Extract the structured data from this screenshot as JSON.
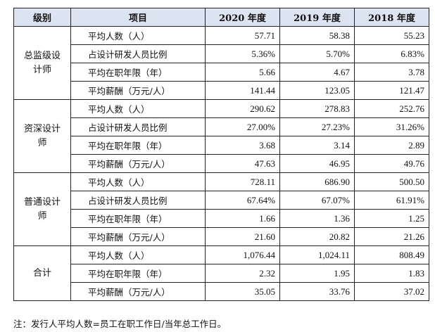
{
  "table": {
    "headers": [
      "级别",
      "项目",
      "2020 年度",
      "2019 年度",
      "2018 年度"
    ],
    "groups": [
      {
        "name": "总监级设计师",
        "rows": [
          {
            "item": "平均人数（人）",
            "v2020": "57.71",
            "v2019": "58.38",
            "v2018": "55.23"
          },
          {
            "item": "占设计研发人员比例",
            "v2020": "5.36%",
            "v2019": "5.70%",
            "v2018": "6.83%"
          },
          {
            "item": "平均在职年限（年）",
            "v2020": "5.66",
            "v2019": "4.67",
            "v2018": "3.78"
          },
          {
            "item": "平均薪酬（万元/人）",
            "v2020": "141.44",
            "v2019": "123.05",
            "v2018": "121.47"
          }
        ]
      },
      {
        "name": "资深设计师",
        "rows": [
          {
            "item": "平均人数（人）",
            "v2020": "290.62",
            "v2019": "278.83",
            "v2018": "252.76"
          },
          {
            "item": "占设计研发人员比例",
            "v2020": "27.00%",
            "v2019": "27.23%",
            "v2018": "31.26%"
          },
          {
            "item": "平均在职年限（年）",
            "v2020": "3.68",
            "v2019": "3.14",
            "v2018": "2.89"
          },
          {
            "item": "平均薪酬（万元/人）",
            "v2020": "47.63",
            "v2019": "46.95",
            "v2018": "49.76"
          }
        ]
      },
      {
        "name": "普通设计师",
        "rows": [
          {
            "item": "平均人数（人）",
            "v2020": "728.11",
            "v2019": "686.90",
            "v2018": "500.50"
          },
          {
            "item": "占设计研发人员比例",
            "v2020": "67.64%",
            "v2019": "67.07%",
            "v2018": "61.91%"
          },
          {
            "item": "平均在职年限（年）",
            "v2020": "1.66",
            "v2019": "1.36",
            "v2018": "1.25"
          },
          {
            "item": "平均薪酬（万元/人）",
            "v2020": "21.60",
            "v2019": "20.82",
            "v2018": "21.26"
          }
        ]
      },
      {
        "name": "合计",
        "rows": [
          {
            "item": "平均人数（人）",
            "v2020": "1,076.44",
            "v2019": "1,024.11",
            "v2018": "808.49"
          },
          {
            "item": "平均在职年限（年）",
            "v2020": "2.32",
            "v2019": "1.95",
            "v2018": "1.83"
          },
          {
            "item": "平均薪酬（万元/人）",
            "v2020": "35.05",
            "v2019": "33.76",
            "v2018": "37.02"
          }
        ]
      }
    ]
  },
  "note": "注：发行人平均人数=员工在职工作日/当年总工作日。",
  "colors": {
    "header_bg": "#dbe4f0",
    "border": "#222222"
  }
}
